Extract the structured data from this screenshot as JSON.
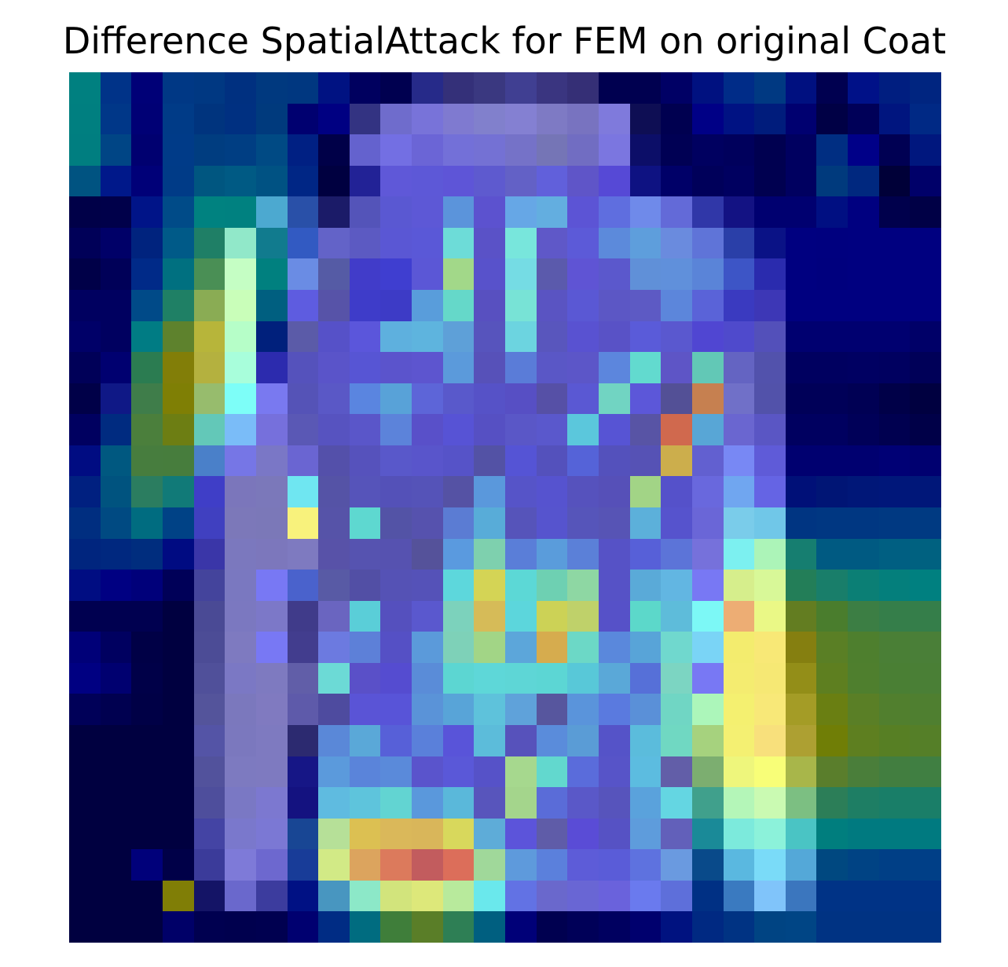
{
  "chart_data": {
    "type": "heatmap",
    "title": "Difference SpatialAttack for FEM on original Coat",
    "xlabel": "",
    "ylabel": "",
    "grid": false,
    "axes_visible": false,
    "rows": 28,
    "cols": 28,
    "pixels": [
      "#008080",
      "#003388",
      "#000077",
      "#003885",
      "#003882",
      "#003080",
      "#00397F",
      "#003780",
      "#001282",
      "#00005F",
      "#000050",
      "#262A89",
      "#343079",
      "#3A3880",
      "#403F92",
      "#3A3580",
      "#352F76",
      "#000050",
      "#000050",
      "#000065",
      "#001180",
      "#002C88",
      "#003982",
      "#001080",
      "#000050",
      "#001188",
      "#001E80",
      "#002580",
      "#007F80",
      "#003788",
      "#000075",
      "#003B87",
      "#00347E",
      "#003081",
      "#003A7D",
      "#000070",
      "#000082",
      "#333382",
      "#6F6CCC",
      "#7873D9",
      "#7F7AD0",
      "#8180CC",
      "#8480D2",
      "#7E7AC4",
      "#7873C0",
      "#7F7ADC",
      "#0E0E54",
      "#000050",
      "#000086",
      "#001283",
      "#001C7C",
      "#000070",
      "#000045",
      "#000058",
      "#00157F",
      "#002985",
      "#007E80",
      "#004585",
      "#000070",
      "#003B88",
      "#003D80",
      "#003E83",
      "#004A84",
      "#002083",
      "#000048",
      "#6462CE",
      "#736FE3",
      "#6B65D6",
      "#7370D8",
      "#7471D4",
      "#7572C8",
      "#7575B6",
      "#716DC2",
      "#7B76E0",
      "#0C0E68",
      "#000054",
      "#000060",
      "#00005C",
      "#000050",
      "#000060",
      "#002E82",
      "#000088",
      "#000053",
      "#00177E",
      "#005381",
      "#00188A",
      "#000078",
      "#003B87",
      "#005680",
      "#005A84",
      "#005283",
      "#002685",
      "#000040",
      "#222296",
      "#5F58D8",
      "#5D58D7",
      "#5E55D7",
      "#5E5ACF",
      "#6361C6",
      "#6160DB",
      "#5F55C8",
      "#5649D6",
      "#0E1282",
      "#000068",
      "#00005A",
      "#000060",
      "#000050",
      "#000060",
      "#003A7D",
      "#00287F",
      "#000038",
      "#000069",
      "#000048",
      "#00004A",
      "#001488",
      "#004B88",
      "#008280",
      "#008180",
      "#4CA9D0",
      "#2950A8",
      "#1B1B68",
      "#5454B9",
      "#5A58D2",
      "#5D58D6",
      "#5B94DB",
      "#5C52CF",
      "#66A7E6",
      "#63AEE0",
      "#5C54D5",
      "#5F6EDF",
      "#6F8AEA",
      "#636AD8",
      "#3037A8",
      "#131283",
      "#000070",
      "#000070",
      "#000F82",
      "#000080",
      "#00004C",
      "#000046",
      "#000058",
      "#000068",
      "#00237E",
      "#005A88",
      "#1F7F66",
      "#91E8C9",
      "#117B8E",
      "#325AC2",
      "#6363C8",
      "#5C5AC2",
      "#5A57D4",
      "#5A58D7",
      "#6DDCD8",
      "#5A52C7",
      "#78E6DC",
      "#5F58C8",
      "#5C5AD8",
      "#5C8ADB",
      "#5E9EDC",
      "#6A8BDE",
      "#5F74D8",
      "#2A3FA8",
      "#0A1286",
      "#000080",
      "#00007F",
      "#000080",
      "#000080",
      "#000080",
      "#000048",
      "#000058",
      "#002A88",
      "#007080",
      "#4A8F55",
      "#C5FEC4",
      "#00807F",
      "#6A8CE4",
      "#555BA5",
      "#413CC9",
      "#3F3ED0",
      "#5B57D6",
      "#A2D889",
      "#5852CB",
      "#75DCE4",
      "#5B5AAC",
      "#5F54D4",
      "#5B58CC",
      "#6090D8",
      "#6090DB",
      "#5A84D8",
      "#3D55C6",
      "#2A2BAE",
      "#000080",
      "#00007E",
      "#000080",
      "#000080",
      "#000080",
      "#000060",
      "#000060",
      "#004A88",
      "#1F8065",
      "#8AAC54",
      "#C9FEB9",
      "#005F80",
      "#5E5CE0",
      "#5753A8",
      "#3E3CC9",
      "#3D3BC6",
      "#599DDB",
      "#65D8C9",
      "#5850C0",
      "#78E3D6",
      "#5A54C2",
      "#5A58D4",
      "#5C57C5",
      "#5D5AC4",
      "#5C86DB",
      "#5A63D8",
      "#3A3AC0",
      "#3D37B6",
      "#000080",
      "#000080",
      "#000080",
      "#000080",
      "#000080",
      "#000068",
      "#000060",
      "#007C84",
      "#5E822D",
      "#B7B53A",
      "#B6FEC8",
      "#00207C",
      "#5B5BA8",
      "#5651C8",
      "#5B56DB",
      "#5EB0DE",
      "#5EB4DE",
      "#5EA0D8",
      "#5754BD",
      "#6CD4E0",
      "#5956BD",
      "#5952D1",
      "#5952C6",
      "#5A5BD9",
      "#5A58CF",
      "#5046D2",
      "#4F4ACC",
      "#5350BA",
      "#000070",
      "#000070",
      "#000070",
      "#000070",
      "#000068",
      "#000058",
      "#000070",
      "#2B7C51",
      "#827E08",
      "#B4B13F",
      "#A8FEDB",
      "#2C2BAE",
      "#5552BC",
      "#5A54C9",
      "#5755D4",
      "#5B54CC",
      "#5D55CF",
      "#5B9ADB",
      "#5751B9",
      "#5A7CD8",
      "#5A57C6",
      "#5C56C8",
      "#5C86DD",
      "#62DACF",
      "#5E55C6",
      "#62C8B6",
      "#6464C2",
      "#5252AC",
      "#000060",
      "#000060",
      "#000062",
      "#000060",
      "#000058",
      "#000048",
      "#0F1886",
      "#3F7D4A",
      "#7F7F05",
      "#97BC6D",
      "#7DFEF8",
      "#7979F0",
      "#5553B7",
      "#5A58C6",
      "#5A85E0",
      "#58A2D8",
      "#5D65D8",
      "#5959CB",
      "#5652C7",
      "#574FC4",
      "#5650A6",
      "#5A58D3",
      "#71D4C2",
      "#5C57D9",
      "#535096",
      "#C68050",
      "#7070C8",
      "#5252AA",
      "#000058",
      "#000058",
      "#000054",
      "#000048",
      "#000040",
      "#000060",
      "#002B80",
      "#4B7F3C",
      "#6D7E13",
      "#63C8B8",
      "#7ABCF8",
      "#7670DC",
      "#5A58B5",
      "#5753C0",
      "#5A56C9",
      "#5C83DA",
      "#5950C9",
      "#5753D5",
      "#5650C3",
      "#5A57C7",
      "#5A58CC",
      "#5BC7DC",
      "#5754D4",
      "#5854A5",
      "#D0694E",
      "#58A6D6",
      "#6A66D0",
      "#5A56C4",
      "#000060",
      "#000060",
      "#000058",
      "#000050",
      "#000048",
      "#000C82",
      "#005880",
      "#477D3E",
      "#477D3D",
      "#4A80C9",
      "#7676E6",
      "#7A77C6",
      "#6A65D2",
      "#5450AA",
      "#5652BC",
      "#5958CA",
      "#5955CB",
      "#5653C8",
      "#5352A5",
      "#5554D5",
      "#5451BC",
      "#5563D8",
      "#5451BC",
      "#5652B5",
      "#CCAE4C",
      "#6260D0",
      "#7888F4",
      "#5F5BD8",
      "#000070",
      "#000070",
      "#000070",
      "#000075",
      "#000070",
      "#002080",
      "#00537F",
      "#2B7D60",
      "#117A78",
      "#3F3EC7",
      "#7B76BB",
      "#7B78BA",
      "#6FE6F1",
      "#5553A6",
      "#5654BA",
      "#5451B8",
      "#5553B8",
      "#5552A4",
      "#5A98DC",
      "#5654C8",
      "#5653CF",
      "#5652BD",
      "#5650B8",
      "#A2D486",
      "#5551CA",
      "#6968DD",
      "#70A6F0",
      "#6564E4",
      "#001078",
      "#001575",
      "#001778",
      "#00177A",
      "#001779",
      "#002E80",
      "#004A82",
      "#006C80",
      "#004286",
      "#4040C0",
      "#7C78B9",
      "#7B78B8",
      "#F8F27C",
      "#5653A8",
      "#5ED8D0",
      "#5353A6",
      "#5652AE",
      "#5B7CD3",
      "#58ACD8",
      "#5654BA",
      "#5654CE",
      "#5655BA",
      "#5754B5",
      "#5CB0DA",
      "#5653CD",
      "#6A66D7",
      "#7ACCEA",
      "#70C7E8",
      "#003582",
      "#003782",
      "#003782",
      "#003982",
      "#003A82",
      "#00257E",
      "#00287F",
      "#002D7E",
      "#000B82",
      "#3A36A8",
      "#7B78BE",
      "#7C77BC",
      "#7E7AC0",
      "#5852A8",
      "#5653B0",
      "#5652B0",
      "#55529A",
      "#5A9ADF",
      "#7ED0AE",
      "#5A7ED8",
      "#5A9CDB",
      "#5B80D8",
      "#5652C6",
      "#5760D8",
      "#5C74D8",
      "#7671DB",
      "#7CF0F0",
      "#ACF4B8",
      "#167E70",
      "#005A82",
      "#005A82",
      "#005F82",
      "#006180",
      "#000D82",
      "#000082",
      "#00007A",
      "#000058",
      "#44449C",
      "#7A78C0",
      "#7878F4",
      "#4A62CC",
      "#585AA5",
      "#524FA5",
      "#5552B5",
      "#5552B8",
      "#5DD7DC",
      "#D4D455",
      "#5CD8D6",
      "#6ED0B2",
      "#8ED7A3",
      "#5652C6",
      "#5AAAD8",
      "#62B6E2",
      "#7878F4",
      "#D6EE8C",
      "#D8F898",
      "#237E58",
      "#197E6A",
      "#0B7F75",
      "#047F7C",
      "#008080",
      "#000050",
      "#000050",
      "#000050",
      "#000040",
      "#4A4A95",
      "#7B78C0",
      "#7C78C8",
      "#403B8A",
      "#6A65C0",
      "#5ACED8",
      "#5550BE",
      "#5A58CE",
      "#7CD2BC",
      "#D6BB58",
      "#5CD6DC",
      "#CCD256",
      "#BFD16A",
      "#5651C8",
      "#5CD8CA",
      "#5EBCDA",
      "#7CF8F6",
      "#EDAD74",
      "#EAF886",
      "#637D21",
      "#4A7D2D",
      "#3C7E44",
      "#357E4A",
      "#357E4A",
      "#000078",
      "#000060",
      "#000046",
      "#000040",
      "#4C4C96",
      "#7E7AC0",
      "#7878F4",
      "#423D8E",
      "#6C7AE0",
      "#5D80D8",
      "#5550C5",
      "#5B9ADA",
      "#7ED1B8",
      "#A2D586",
      "#5CA6DA",
      "#D6AC4E",
      "#6CD8C6",
      "#5A88DC",
      "#58A4D8",
      "#70D8CE",
      "#7AD4F6",
      "#F3EC6E",
      "#F8E876",
      "#857F10",
      "#5A7F25",
      "#4E7F2E",
      "#4A7F36",
      "#4A7F38",
      "#000082",
      "#000070",
      "#000048",
      "#000040",
      "#50509A",
      "#7B78C4",
      "#7E7AC0",
      "#615EA8",
      "#6CDAD6",
      "#5A50C8",
      "#554CD0",
      "#5A8CD8",
      "#5CD6D2",
      "#5ED7D8",
      "#5ED6D6",
      "#5CD6D4",
      "#58C8D8",
      "#5AA8D8",
      "#5670D8",
      "#7CD5C2",
      "#7878F4",
      "#F4EC70",
      "#F6E874",
      "#938E18",
      "#5E7F20",
      "#4F7F2E",
      "#4A7F34",
      "#4A7F36",
      "#000058",
      "#000050",
      "#000046",
      "#000040",
      "#54549B",
      "#7B78BD",
      "#807AC0",
      "#5E5AAA",
      "#4E4B9F",
      "#5A54D6",
      "#5854D8",
      "#5A93D8",
      "#58A4D8",
      "#5EC2DB",
      "#5FA2DA",
      "#57569E",
      "#5A94DB",
      "#5A7ADF",
      "#5A90D8",
      "#70D6C4",
      "#ACF6BA",
      "#F4F070",
      "#F8E878",
      "#A49C26",
      "#6A7F12",
      "#5A7F26",
      "#517F2E",
      "#4F7F30",
      "#000040",
      "#000040",
      "#000040",
      "#000040",
      "#5454A6",
      "#7B78BE",
      "#7E7AC0",
      "#2C2A70",
      "#5A88D8",
      "#5AA8D8",
      "#5760D8",
      "#5A80DA",
      "#5954D9",
      "#5CBCDA",
      "#5752BB",
      "#5A8CDB",
      "#5A9CD6",
      "#5553C8",
      "#5BBCDC",
      "#70D8C2",
      "#A6D27E",
      "#F4F072",
      "#F8E07C",
      "#ADA032",
      "#707E06",
      "#5E7F20",
      "#577F24",
      "#557F28",
      "#000040",
      "#000040",
      "#000040",
      "#000040",
      "#52529C",
      "#7D7AC0",
      "#7E7AC0",
      "#161686",
      "#5B9ADC",
      "#5A84DA",
      "#5A8ADA",
      "#5A54CC",
      "#5A58D8",
      "#5652C8",
      "#A6D88E",
      "#62D8CE",
      "#5A6CDB",
      "#5754C8",
      "#5CBCE0",
      "#625EA8",
      "#7CAE70",
      "#EEF67C",
      "#F8FE78",
      "#A8B64A",
      "#5A7E2C",
      "#4A7E3A",
      "#427E40",
      "#407F42",
      "#000040",
      "#000040",
      "#000040",
      "#000040",
      "#4E4E9C",
      "#7A78C4",
      "#7C78D0",
      "#141280",
      "#5FBBE0",
      "#5EC4DC",
      "#62D4D2",
      "#5A98DC",
      "#5AB8DA",
      "#5855BC",
      "#A4D58C",
      "#5A6CD8",
      "#5A58C8",
      "#5754BC",
      "#5AA2DC",
      "#64D6E2",
      "#40A08C",
      "#B4F6B8",
      "#CAFAB2",
      "#7CBF82",
      "#2C7E58",
      "#1E7E64",
      "#197E68",
      "#1A7E68",
      "#000040",
      "#000040",
      "#000040",
      "#000040",
      "#4444A4",
      "#7A78CC",
      "#7B78D4",
      "#184694",
      "#B6E098",
      "#DCC052",
      "#DAB85A",
      "#D9B65A",
      "#D8D85C",
      "#5EACD8",
      "#5C54DA",
      "#5F5CA8",
      "#5A4CD6",
      "#5652C4",
      "#5E9CDC",
      "#6260BA",
      "#1A8A98",
      "#7CEADC",
      "#8CF2DA",
      "#4AC4C4",
      "#007E7E",
      "#007A80",
      "#007A80",
      "#007A80",
      "#000040",
      "#000040",
      "#00007A",
      "#000048",
      "#3B3B9A",
      "#7E7AD8",
      "#6D68CF",
      "#183C98",
      "#D2EA86",
      "#DCA45E",
      "#DC7A5C",
      "#C25C5E",
      "#DC6E5A",
      "#A0D89A",
      "#5E9ADC",
      "#5B80DC",
      "#5D5CD8",
      "#5A5CD8",
      "#5E72DF",
      "#6A9AE0",
      "#094A8A",
      "#5AB8E0",
      "#7ADBF8",
      "#54A8D8",
      "#004880",
      "#004384",
      "#003F86",
      "#003F87",
      "#000040",
      "#000040",
      "#000040",
      "#807E06",
      "#141466",
      "#6A68CC",
      "#3C3C9E",
      "#001184",
      "#4896C0",
      "#8CE8C8",
      "#D2E47C",
      "#DDE87A",
      "#B8EA9C",
      "#6AE8EC",
      "#6272E4",
      "#6A68CC",
      "#6966D4",
      "#6A62DC",
      "#6A7AEE",
      "#5E6FDA",
      "#003084",
      "#3A7AC0",
      "#80C4FA",
      "#3B76BE",
      "#003386",
      "#003386",
      "#003386",
      "#003386",
      "#000040",
      "#000040",
      "#000040",
      "#000068",
      "#000050",
      "#00004E",
      "#000050",
      "#000070",
      "#002C84",
      "#006C80",
      "#3F7E3A",
      "#5A7E28",
      "#2E7F55",
      "#005F80",
      "#000078",
      "#000050",
      "#000058",
      "#000060",
      "#00006E",
      "#001280",
      "#002982",
      "#003383",
      "#004483",
      "#004585",
      "#003383",
      "#003383",
      "#003383",
      "#003383"
    ]
  }
}
